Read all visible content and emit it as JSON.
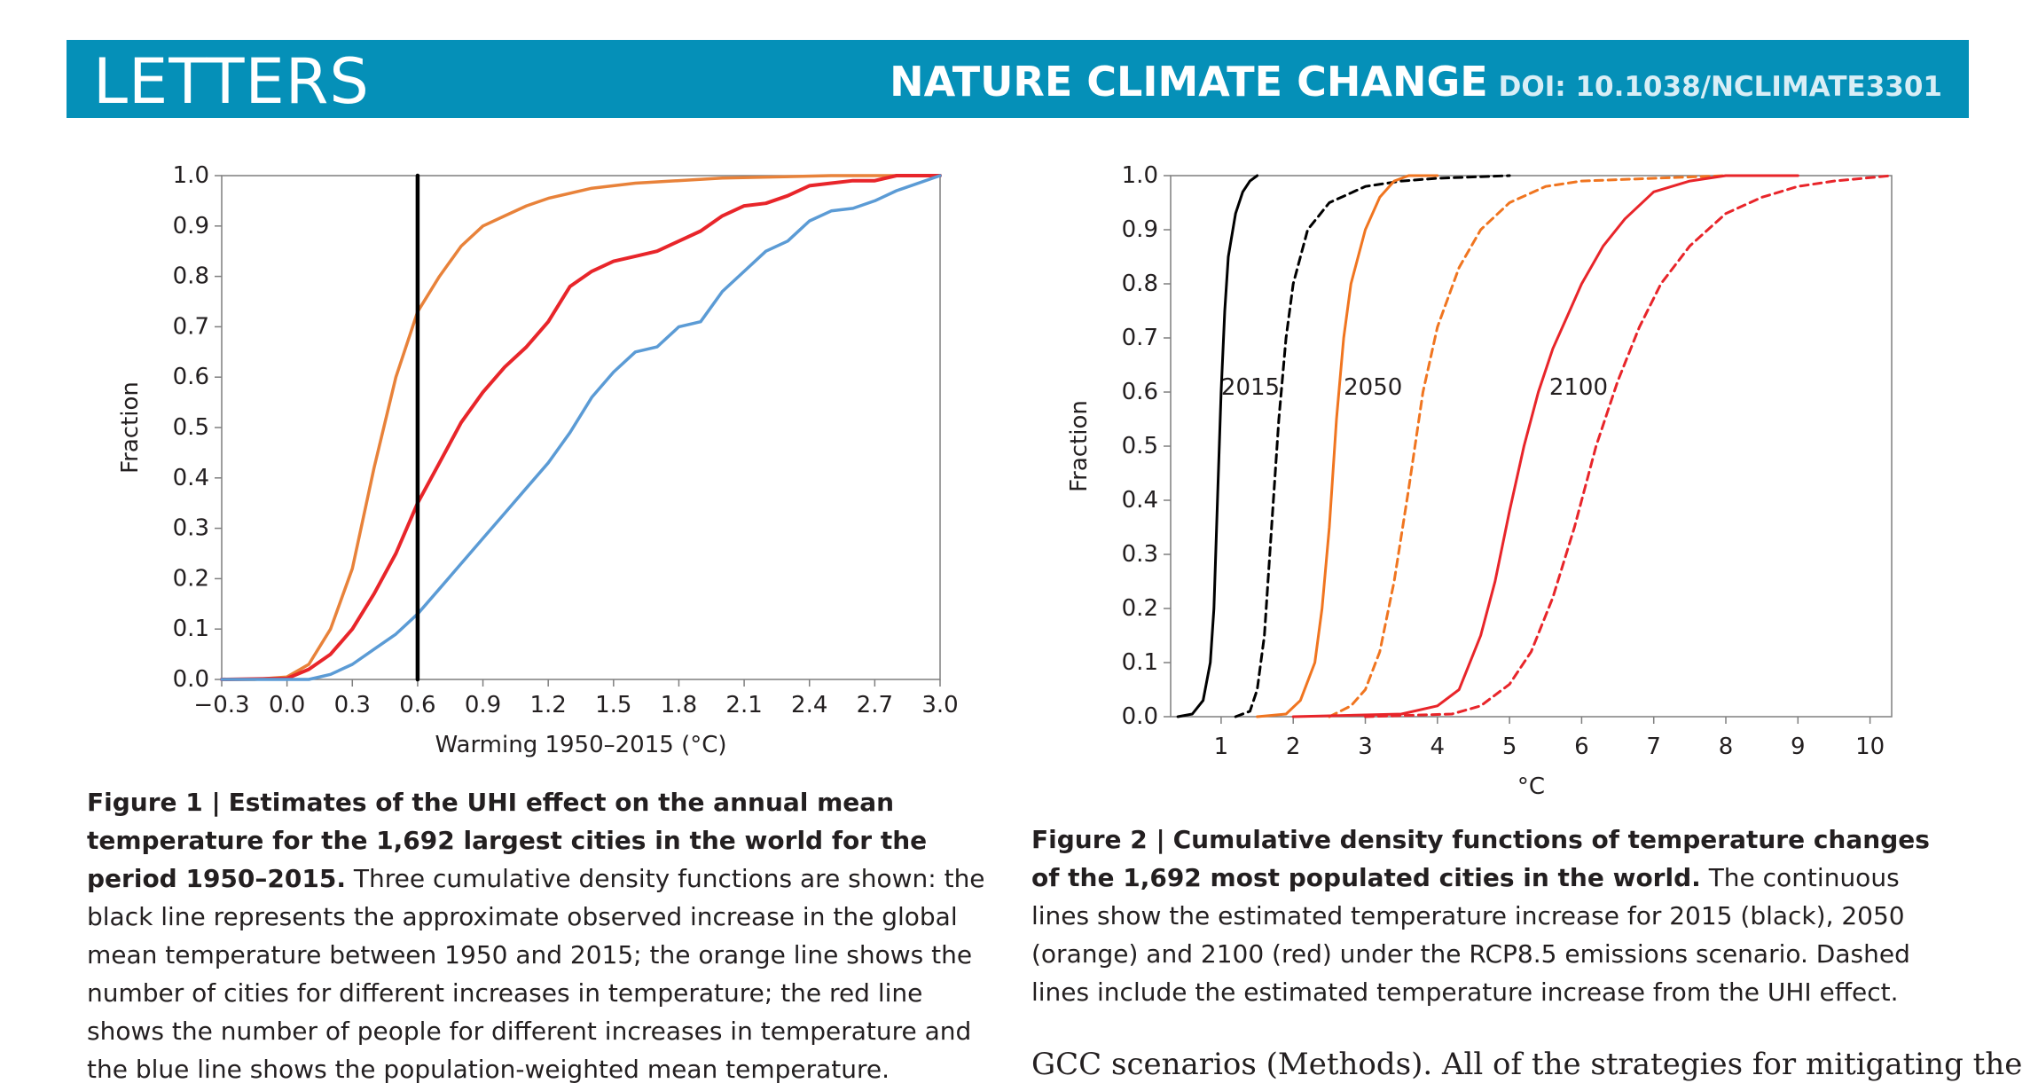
{
  "header": {
    "section": "LETTERS",
    "journal": "NATURE CLIMATE CHANGE",
    "doi": "DOI: 10.1038/NCLIMATE3301"
  },
  "figure1": {
    "caption_label": "Figure 1 |",
    "caption_title": "Estimates of the UHI effect on the annual mean temperature for the 1,692 largest cities in the world for the period 1950–2015.",
    "caption_body": "Three cumulative density functions are shown: the black line represents the approximate observed increase in the global mean temperature between 1950 and 2015; the orange line shows the number of cities for different increases in temperature; the red line shows the number of people for different increases in temperature and the blue line shows the population-weighted mean temperature."
  },
  "figure2": {
    "caption_label": "Figure 2 |",
    "caption_title": "Cumulative density functions of temperature changes of the 1,692 most populated cities in the world.",
    "caption_body": "The continuous lines show the estimated temperature increase for 2015 (black), 2050 (orange) and 2100 (red) under the RCP8.5 emissions scenario. Dashed lines include the estimated temperature increase from the UHI effect."
  },
  "body_text": "GCC scenarios (Methods). All of the strategies for mitigating the",
  "chart_data": [
    {
      "type": "line",
      "xlabel": "Warming 1950–2015 (°C)",
      "ylabel": "Fraction",
      "xlim": [
        -0.3,
        3.0
      ],
      "ylim": [
        0,
        1
      ],
      "xticks": [
        "−0.3",
        "0.0",
        "0.3",
        "0.6",
        "0.9",
        "1.2",
        "1.5",
        "1.8",
        "2.1",
        "2.4",
        "2.7",
        "3.0"
      ],
      "yticks": [
        "0.0",
        "0.1",
        "0.2",
        "0.3",
        "0.4",
        "0.5",
        "0.6",
        "0.7",
        "0.8",
        "0.9",
        "1.0"
      ],
      "grid": false,
      "series": [
        {
          "color": "#e8823a",
          "style": "solid",
          "x": [
            -0.3,
            -0.15,
            0.0,
            0.1,
            0.2,
            0.3,
            0.4,
            0.5,
            0.6,
            0.7,
            0.8,
            0.9,
            1.0,
            1.1,
            1.2,
            1.4,
            1.6,
            2.0,
            2.5,
            3.0
          ],
          "y": [
            0,
            0,
            0.005,
            0.03,
            0.1,
            0.22,
            0.42,
            0.6,
            0.73,
            0.8,
            0.86,
            0.9,
            0.92,
            0.94,
            0.955,
            0.975,
            0.985,
            0.995,
            1.0,
            1.0
          ]
        },
        {
          "color": "#e8252a",
          "style": "solid",
          "x": [
            -0.3,
            0.0,
            0.1,
            0.2,
            0.3,
            0.4,
            0.5,
            0.6,
            0.7,
            0.8,
            0.9,
            1.0,
            1.1,
            1.2,
            1.3,
            1.4,
            1.5,
            1.6,
            1.7,
            1.8,
            1.9,
            2.0,
            2.1,
            2.2,
            2.3,
            2.4,
            2.5,
            2.6,
            2.7,
            2.8,
            3.0
          ],
          "y": [
            0,
            0.002,
            0.02,
            0.05,
            0.1,
            0.17,
            0.25,
            0.35,
            0.43,
            0.51,
            0.57,
            0.62,
            0.66,
            0.71,
            0.78,
            0.81,
            0.83,
            0.84,
            0.85,
            0.87,
            0.89,
            0.92,
            0.94,
            0.945,
            0.96,
            0.98,
            0.985,
            0.99,
            0.99,
            1.0,
            1.0
          ]
        },
        {
          "color": "#5b9bd5",
          "style": "solid",
          "x": [
            -0.3,
            0.1,
            0.2,
            0.3,
            0.4,
            0.5,
            0.6,
            0.7,
            0.8,
            0.9,
            1.0,
            1.1,
            1.2,
            1.3,
            1.4,
            1.5,
            1.6,
            1.7,
            1.8,
            1.9,
            2.0,
            2.1,
            2.2,
            2.3,
            2.4,
            2.5,
            2.6,
            2.7,
            2.8,
            3.0
          ],
          "y": [
            0,
            0,
            0.01,
            0.03,
            0.06,
            0.09,
            0.13,
            0.18,
            0.23,
            0.28,
            0.33,
            0.38,
            0.43,
            0.49,
            0.56,
            0.61,
            0.65,
            0.66,
            0.7,
            0.71,
            0.77,
            0.81,
            0.85,
            0.87,
            0.91,
            0.93,
            0.935,
            0.95,
            0.97,
            1.0
          ]
        },
        {
          "color": "#000000",
          "style": "solid",
          "x": [
            0.6,
            0.6
          ],
          "y": [
            0,
            1
          ]
        }
      ]
    },
    {
      "type": "line",
      "xlabel": "°C",
      "ylabel": "Fraction",
      "xlim": [
        0.3,
        10.3
      ],
      "ylim": [
        0,
        1
      ],
      "xticks": [
        "1",
        "2",
        "3",
        "4",
        "5",
        "6",
        "7",
        "8",
        "9",
        "10"
      ],
      "yticks": [
        "0.0",
        "0.1",
        "0.2",
        "0.3",
        "0.4",
        "0.5",
        "0.6",
        "0.7",
        "0.8",
        "0.9",
        "1.0"
      ],
      "grid": false,
      "annotations": [
        "2015",
        "2050",
        "2100"
      ],
      "series": [
        {
          "color": "#000000",
          "style": "solid",
          "x": [
            0.4,
            0.6,
            0.75,
            0.85,
            0.9,
            0.95,
            1.0,
            1.05,
            1.1,
            1.2,
            1.3,
            1.4,
            1.5
          ],
          "y": [
            0,
            0.005,
            0.03,
            0.1,
            0.2,
            0.4,
            0.6,
            0.75,
            0.85,
            0.93,
            0.97,
            0.99,
            1.0
          ]
        },
        {
          "color": "#000000",
          "style": "dashed",
          "x": [
            1.2,
            1.4,
            1.5,
            1.6,
            1.7,
            1.8,
            1.9,
            2.0,
            2.2,
            2.5,
            3.0,
            3.5,
            4.0,
            5.0
          ],
          "y": [
            0,
            0.01,
            0.05,
            0.15,
            0.35,
            0.55,
            0.7,
            0.8,
            0.9,
            0.95,
            0.98,
            0.99,
            0.995,
            1.0
          ]
        },
        {
          "color": "#f07520",
          "style": "solid",
          "x": [
            1.5,
            1.9,
            2.1,
            2.3,
            2.4,
            2.5,
            2.6,
            2.7,
            2.8,
            3.0,
            3.2,
            3.4,
            3.6,
            4.0
          ],
          "y": [
            0,
            0.005,
            0.03,
            0.1,
            0.2,
            0.35,
            0.55,
            0.7,
            0.8,
            0.9,
            0.96,
            0.99,
            1.0,
            1.0
          ]
        },
        {
          "color": "#f07520",
          "style": "dashed",
          "x": [
            2.5,
            2.8,
            3.0,
            3.2,
            3.4,
            3.6,
            3.8,
            4.0,
            4.3,
            4.6,
            5.0,
            5.5,
            6.0,
            7.0,
            8.0
          ],
          "y": [
            0,
            0.02,
            0.05,
            0.12,
            0.25,
            0.42,
            0.6,
            0.72,
            0.83,
            0.9,
            0.95,
            0.98,
            0.99,
            0.995,
            1.0
          ]
        },
        {
          "color": "#e8252a",
          "style": "solid",
          "x": [
            2.0,
            3.5,
            4.0,
            4.3,
            4.6,
            4.8,
            5.0,
            5.2,
            5.4,
            5.6,
            5.8,
            6.0,
            6.3,
            6.6,
            7.0,
            7.5,
            8.0,
            9.0
          ],
          "y": [
            0,
            0.005,
            0.02,
            0.05,
            0.15,
            0.25,
            0.38,
            0.5,
            0.6,
            0.68,
            0.74,
            0.8,
            0.87,
            0.92,
            0.97,
            0.99,
            1.0,
            1.0
          ]
        },
        {
          "color": "#e8252a",
          "style": "dashed",
          "x": [
            3.0,
            4.2,
            4.6,
            5.0,
            5.3,
            5.6,
            5.9,
            6.2,
            6.5,
            6.8,
            7.1,
            7.5,
            8.0,
            8.5,
            9.0,
            9.5,
            10.3
          ],
          "y": [
            0,
            0.005,
            0.02,
            0.06,
            0.12,
            0.22,
            0.35,
            0.5,
            0.62,
            0.72,
            0.8,
            0.87,
            0.93,
            0.96,
            0.98,
            0.99,
            1.0
          ]
        }
      ]
    }
  ]
}
